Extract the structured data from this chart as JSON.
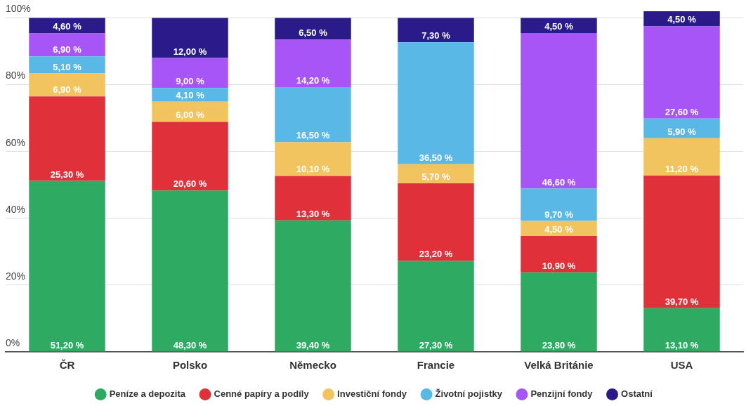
{
  "chart_data": {
    "type": "bar",
    "stacked": true,
    "categories": [
      "ČR",
      "Polsko",
      "Německo",
      "Francie",
      "Velká Británie",
      "USA"
    ],
    "ylim": [
      0,
      102
    ],
    "yticks": [
      {
        "value": 0,
        "label": "0%"
      },
      {
        "value": 20,
        "label": "20%"
      },
      {
        "value": 40,
        "label": "40%"
      },
      {
        "value": 60,
        "label": "60%"
      },
      {
        "value": 80,
        "label": "80%"
      },
      {
        "value": 100,
        "label": "100%"
      }
    ],
    "grid": "y",
    "legend": "bottom",
    "series": [
      {
        "name": "Peníze a depozita",
        "color": "#2eaa62",
        "values": [
          51.2,
          48.3,
          39.4,
          27.3,
          23.8,
          13.1
        ],
        "value_labels": [
          "51,20 %",
          "48,30 %",
          "39,40 %",
          "27,30 %",
          "23,80 %",
          "13,10 %"
        ]
      },
      {
        "name": "Cenné papíry a podíly",
        "color": "#e0313a",
        "values": [
          25.3,
          20.6,
          13.3,
          23.2,
          10.9,
          39.7
        ],
        "value_labels": [
          "25,30 %",
          "20,60 %",
          "13,30 %",
          "23,20 %",
          "10,90 %",
          "39,70 %"
        ]
      },
      {
        "name": "Investiční fondy",
        "color": "#f2c460",
        "values": [
          6.9,
          6.0,
          10.1,
          5.7,
          4.5,
          11.2
        ],
        "value_labels": [
          "6,90 %",
          "6,00 %",
          "10,10 %",
          "5,70 %",
          "4,50 %",
          "11,20 %"
        ]
      },
      {
        "name": "Životní pojistky",
        "color": "#5ab8e6",
        "values": [
          5.1,
          4.1,
          16.5,
          36.5,
          9.7,
          5.9
        ],
        "value_labels": [
          "5,10 %",
          "4,10 %",
          "16,50 %",
          "36,50 %",
          "9,70 %",
          "5,90 %"
        ]
      },
      {
        "name": "Penzijní fondy",
        "color": "#a855f7",
        "values": [
          6.9,
          9.0,
          14.2,
          null,
          46.6,
          27.6
        ],
        "value_labels": [
          "6,90 %",
          "9,00 %",
          "14,20 %",
          null,
          "46,60 %",
          "27,60 %"
        ]
      },
      {
        "name": "Ostatní",
        "color": "#2a1a8a",
        "values": [
          4.6,
          12.0,
          6.5,
          7.3,
          4.5,
          4.5
        ],
        "value_labels": [
          "4,60 %",
          "12,00 %",
          "6,50 %",
          "7,30 %",
          "4,50 %",
          "4,50 %"
        ]
      }
    ]
  }
}
